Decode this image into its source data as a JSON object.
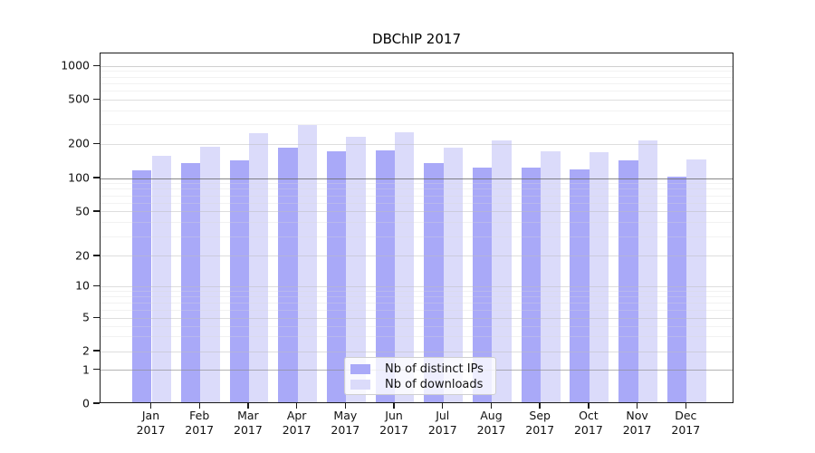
{
  "chart_data": {
    "type": "bar",
    "title": "DBChIP 2017",
    "x_categories": [
      "Jan 2017",
      "Feb 2017",
      "Mar 2017",
      "Apr 2017",
      "May 2017",
      "Jun 2017",
      "Jul 2017",
      "Aug 2017",
      "Sep 2017",
      "Oct 2017",
      "Nov 2017",
      "Dec 2017"
    ],
    "months": [
      "Jan",
      "Feb",
      "Mar",
      "Apr",
      "May",
      "Jun",
      "Jul",
      "Aug",
      "Sep",
      "Oct",
      "Nov",
      "Dec"
    ],
    "year": "2017",
    "series": [
      {
        "name": "Nb of distinct IPs",
        "color": "#a9a9f8",
        "values": [
          115,
          132,
          140,
          179,
          167,
          172,
          133,
          120,
          121,
          116,
          139,
          100
        ]
      },
      {
        "name": "Nb of downloads",
        "color": "#dbdbfa",
        "values": [
          153,
          184,
          245,
          290,
          226,
          247,
          180,
          208,
          168,
          164,
          208,
          143
        ]
      }
    ],
    "y_ticks": [
      0,
      1,
      2,
      5,
      10,
      20,
      50,
      100,
      200,
      500,
      1000
    ],
    "y_minor_gridlines": [
      3,
      4,
      6,
      7,
      8,
      9,
      30,
      40,
      60,
      70,
      80,
      90,
      300,
      400,
      600,
      700,
      800,
      900
    ],
    "y_scale": "log-like with linear region near zero",
    "ylim": [
      0,
      1200
    ],
    "grid": "on",
    "legend_position": "inside lower-center"
  }
}
